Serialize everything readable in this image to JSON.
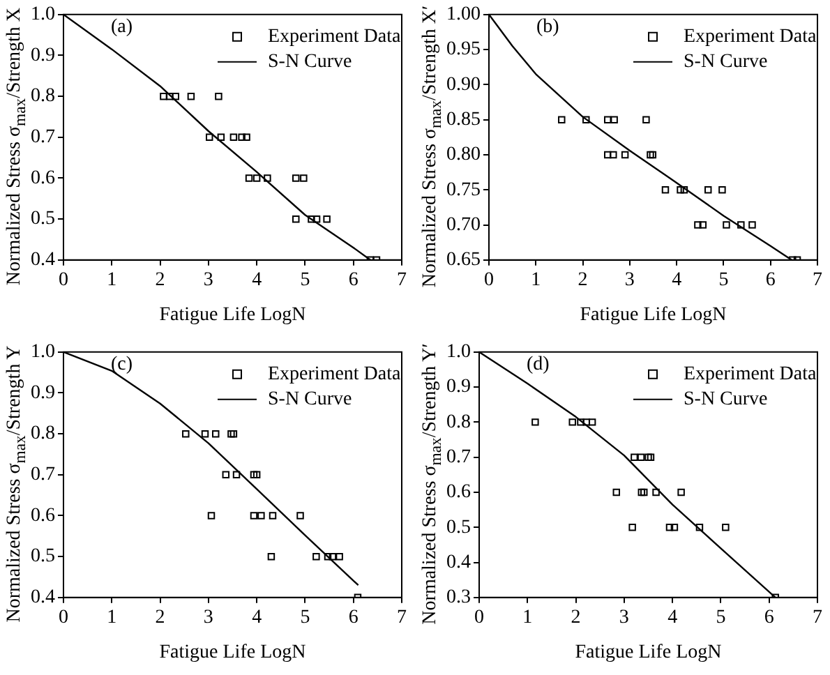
{
  "chart_data": [
    {
      "type": "scatter",
      "xlabel": "Fatigue Life LogN",
      "ylabel": "Normalized Stress σ$_{max}$/Strength X",
      "annotations": [
        "(a)"
      ],
      "legend": "top right",
      "grid": false,
      "xlim": [
        0,
        7
      ],
      "xticks": [
        0,
        1,
        2,
        3,
        4,
        5,
        6,
        7
      ],
      "ylim": [
        0.4,
        1.0
      ],
      "yticks": [
        {
          "value": 0.4,
          "label": "0.4"
        },
        {
          "value": 0.5,
          "label": "0.5"
        },
        {
          "value": 0.6,
          "label": "0.6"
        },
        {
          "value": 0.7,
          "label": "0.7"
        },
        {
          "value": 0.8,
          "label": "0.8"
        },
        {
          "value": 0.9,
          "label": "0.9"
        },
        {
          "value": 1.0,
          "label": "1.0"
        }
      ],
      "series": [
        {
          "name": "Experiment Data",
          "type": "scatter",
          "color": "#000000",
          "marker": "square",
          "x": [
            2.07,
            2.2,
            2.32,
            2.64,
            3.21,
            3.02,
            3.26,
            3.52,
            3.69,
            3.79,
            3.84,
            4.0,
            4.22,
            4.81,
            4.97,
            4.81,
            5.13,
            5.24,
            5.45,
            6.35,
            6.48
          ],
          "values": [
            0.8,
            0.8,
            0.8,
            0.8,
            0.8,
            0.7,
            0.7,
            0.7,
            0.7,
            0.7,
            0.6,
            0.6,
            0.6,
            0.6,
            0.6,
            0.5,
            0.5,
            0.5,
            0.5,
            0.4,
            0.4
          ]
        },
        {
          "name": "S-N Curve",
          "type": "line",
          "color": "#000000",
          "marker": "none",
          "x": [
            0,
            1,
            2,
            3,
            4,
            5,
            6,
            6.35
          ],
          "values": [
            1.0,
            0.915,
            0.825,
            0.715,
            0.615,
            0.51,
            0.43,
            0.4
          ]
        }
      ]
    },
    {
      "type": "scatter",
      "xlabel": "Fatigue Life LogN",
      "ylabel": "Normalized Stress σ$_{max}$/Strength X′",
      "annotations": [
        "(b)"
      ],
      "legend": "top right",
      "grid": false,
      "xlim": [
        0,
        7
      ],
      "xticks": [
        0,
        1,
        2,
        3,
        4,
        5,
        6,
        7
      ],
      "ylim": [
        0.65,
        1.0
      ],
      "yticks": [
        {
          "value": 0.65,
          "label": "0.65"
        },
        {
          "value": 0.7,
          "label": "0.70"
        },
        {
          "value": 0.75,
          "label": "0.75"
        },
        {
          "value": 0.8,
          "label": "0.80"
        },
        {
          "value": 0.85,
          "label": "0.85"
        },
        {
          "value": 0.9,
          "label": "0.90"
        },
        {
          "value": 0.95,
          "label": "0.95"
        },
        {
          "value": 1.0,
          "label": "1.00"
        }
      ],
      "series": [
        {
          "name": "Experiment Data",
          "type": "scatter",
          "color": "#000000",
          "marker": "square",
          "x": [
            1.55,
            2.07,
            2.53,
            2.67,
            3.35,
            2.53,
            2.65,
            2.9,
            3.44,
            3.49,
            3.76,
            4.08,
            4.16,
            4.67,
            4.97,
            4.45,
            4.56,
            5.06,
            5.37,
            5.61,
            6.47,
            6.57
          ],
          "values": [
            0.85,
            0.85,
            0.85,
            0.85,
            0.85,
            0.8,
            0.8,
            0.8,
            0.8,
            0.8,
            0.75,
            0.75,
            0.75,
            0.75,
            0.75,
            0.7,
            0.7,
            0.7,
            0.7,
            0.7,
            0.65,
            0.65
          ]
        },
        {
          "name": "S-N Curve",
          "type": "line",
          "color": "#000000",
          "marker": "none",
          "x": [
            0,
            0.5,
            1,
            2,
            3,
            4,
            5,
            6,
            6.45
          ],
          "values": [
            1.0,
            0.955,
            0.915,
            0.854,
            0.806,
            0.76,
            0.713,
            0.67,
            0.65
          ]
        }
      ]
    },
    {
      "type": "scatter",
      "xlabel": "Fatigue Life LogN",
      "ylabel": "Normalized Stress σ$_{max}$/Strength Y",
      "annotations": [
        "(c)"
      ],
      "legend": "top right",
      "grid": false,
      "xlim": [
        0,
        7
      ],
      "xticks": [
        0,
        1,
        2,
        3,
        4,
        5,
        6,
        7
      ],
      "ylim": [
        0.4,
        1.0
      ],
      "yticks": [
        {
          "value": 0.4,
          "label": "0.4"
        },
        {
          "value": 0.5,
          "label": "0.5"
        },
        {
          "value": 0.6,
          "label": "0.6"
        },
        {
          "value": 0.7,
          "label": "0.7"
        },
        {
          "value": 0.8,
          "label": "0.8"
        },
        {
          "value": 0.9,
          "label": "0.9"
        },
        {
          "value": 1.0,
          "label": "1.0"
        }
      ],
      "series": [
        {
          "name": "Experiment Data",
          "type": "scatter",
          "color": "#000000",
          "marker": "square",
          "x": [
            2.53,
            2.93,
            3.15,
            3.47,
            3.52,
            3.36,
            3.58,
            3.94,
            4.0,
            3.06,
            3.94,
            4.09,
            4.33,
            4.9,
            4.3,
            5.23,
            5.47,
            5.57,
            5.71,
            6.09
          ],
          "values": [
            0.8,
            0.8,
            0.8,
            0.8,
            0.8,
            0.7,
            0.7,
            0.7,
            0.7,
            0.6,
            0.6,
            0.6,
            0.6,
            0.6,
            0.5,
            0.5,
            0.5,
            0.5,
            0.5,
            0.4
          ]
        },
        {
          "name": "S-N Curve",
          "type": "line",
          "color": "#000000",
          "marker": "none",
          "x": [
            0,
            1,
            2,
            3,
            4,
            5,
            6.1
          ],
          "values": [
            1.0,
            0.954,
            0.874,
            0.777,
            0.665,
            0.552,
            0.43
          ]
        }
      ]
    },
    {
      "type": "scatter",
      "xlabel": "Fatigue Life LogN",
      "ylabel": "Normalized Stress σ$_{max}$/Strength Y′",
      "annotations": [
        "(d)"
      ],
      "legend": "top right",
      "grid": false,
      "xlim": [
        0,
        7
      ],
      "xticks": [
        0,
        1,
        2,
        3,
        4,
        5,
        6,
        7
      ],
      "ylim": [
        0.3,
        1.0
      ],
      "yticks": [
        {
          "value": 0.3,
          "label": "0.3"
        },
        {
          "value": 0.4,
          "label": "0.4"
        },
        {
          "value": 0.5,
          "label": "0.5"
        },
        {
          "value": 0.6,
          "label": "0.6"
        },
        {
          "value": 0.7,
          "label": "0.7"
        },
        {
          "value": 0.8,
          "label": "0.8"
        },
        {
          "value": 0.9,
          "label": "0.9"
        },
        {
          "value": 1.0,
          "label": "1.0"
        }
      ],
      "series": [
        {
          "name": "Experiment Data",
          "type": "scatter",
          "color": "#000000",
          "marker": "square",
          "x": [
            1.16,
            1.93,
            2.1,
            2.22,
            2.34,
            3.21,
            3.35,
            3.5,
            3.55,
            2.84,
            3.36,
            3.41,
            3.66,
            4.18,
            3.17,
            3.94,
            4.04,
            4.56,
            5.1,
            6.13
          ],
          "values": [
            0.8,
            0.8,
            0.8,
            0.8,
            0.8,
            0.7,
            0.7,
            0.7,
            0.7,
            0.6,
            0.6,
            0.6,
            0.6,
            0.6,
            0.5,
            0.5,
            0.5,
            0.5,
            0.5,
            0.3
          ]
        },
        {
          "name": "S-N Curve",
          "type": "line",
          "color": "#000000",
          "marker": "none",
          "x": [
            0,
            1,
            2,
            3,
            4,
            5,
            6.13
          ],
          "values": [
            1.0,
            0.91,
            0.815,
            0.705,
            0.565,
            0.44,
            0.3
          ]
        }
      ]
    }
  ]
}
